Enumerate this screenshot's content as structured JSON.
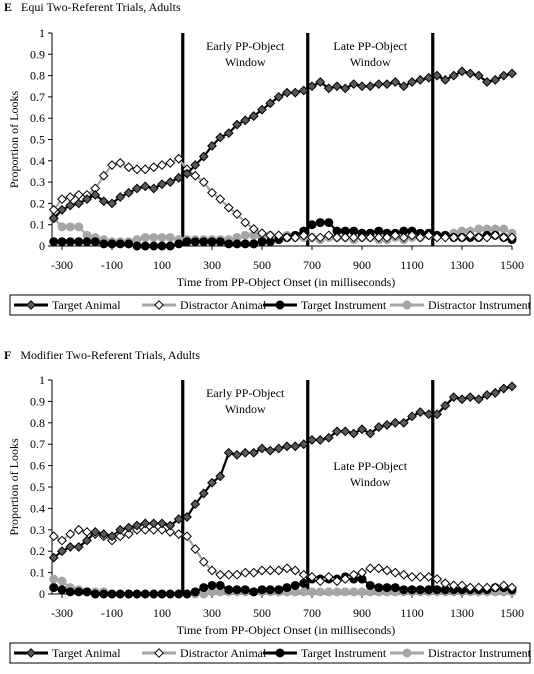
{
  "chart_data": [
    {
      "type": "line",
      "panel_letter": "E",
      "title": "Equi Two-Referent Trials, Adults",
      "xlabel": "Time from PP-Object Onset (in milliseconds)",
      "ylabel": "Proportion of Looks",
      "xlim": [
        -340,
        1500
      ],
      "ylim": [
        0,
        1
      ],
      "xticks": [
        -300,
        -100,
        100,
        300,
        500,
        700,
        900,
        1100,
        1300,
        1500
      ],
      "yticks": [
        0,
        0.1,
        0.2,
        0.3,
        0.4,
        0.5,
        0.6,
        0.7,
        0.8,
        0.9,
        1
      ],
      "window_lines": [
        183,
        683,
        1183
      ],
      "window_labels": [
        {
          "line1": "Early PP-Object",
          "line2": "Window",
          "x": 433,
          "y": 0.92
        },
        {
          "line1": "Late PP-Object",
          "line2": "Window",
          "x": 933,
          "y": 0.92
        }
      ],
      "grid": false,
      "legend": "bottom",
      "x": [
        -333,
        -300,
        -267,
        -233,
        -200,
        -167,
        -133,
        -100,
        -67,
        -33,
        0,
        33,
        67,
        100,
        133,
        167,
        200,
        233,
        267,
        300,
        333,
        367,
        400,
        433,
        467,
        500,
        533,
        567,
        600,
        633,
        667,
        700,
        733,
        767,
        800,
        833,
        867,
        900,
        933,
        967,
        1000,
        1033,
        1067,
        1100,
        1133,
        1167,
        1200,
        1233,
        1267,
        1300,
        1333,
        1367,
        1400,
        1433,
        1467,
        1500
      ],
      "series": [
        {
          "name": "Target Animal",
          "style": "target-animal",
          "values": [
            0.13,
            0.17,
            0.19,
            0.2,
            0.22,
            0.24,
            0.21,
            0.2,
            0.23,
            0.25,
            0.27,
            0.28,
            0.27,
            0.29,
            0.3,
            0.32,
            0.34,
            0.38,
            0.42,
            0.47,
            0.51,
            0.53,
            0.57,
            0.59,
            0.61,
            0.64,
            0.67,
            0.7,
            0.72,
            0.72,
            0.73,
            0.75,
            0.77,
            0.74,
            0.75,
            0.74,
            0.76,
            0.75,
            0.75,
            0.76,
            0.76,
            0.77,
            0.75,
            0.77,
            0.78,
            0.79,
            0.8,
            0.78,
            0.8,
            0.82,
            0.81,
            0.8,
            0.77,
            0.78,
            0.8,
            0.81
          ]
        },
        {
          "name": "Distractor Animal",
          "style": "distractor-animal",
          "values": [
            0.17,
            0.22,
            0.23,
            0.24,
            0.24,
            0.27,
            0.33,
            0.38,
            0.39,
            0.37,
            0.36,
            0.36,
            0.37,
            0.38,
            0.39,
            0.41,
            0.36,
            0.33,
            0.3,
            0.25,
            0.22,
            0.18,
            0.15,
            0.11,
            0.08,
            0.06,
            0.05,
            0.05,
            0.04,
            0.04,
            0.05,
            0.04,
            0.04,
            0.05,
            0.04,
            0.04,
            0.04,
            0.04,
            0.04,
            0.04,
            0.04,
            0.05,
            0.04,
            0.05,
            0.04,
            0.05,
            0.04,
            0.04,
            0.04,
            0.04,
            0.05,
            0.04,
            0.04,
            0.05,
            0.04,
            0.04
          ]
        },
        {
          "name": "Target Instrument",
          "style": "target-instrument",
          "values": [
            0.02,
            0.02,
            0.02,
            0.02,
            0.02,
            0.02,
            0.01,
            0.01,
            0.01,
            0.01,
            0.0,
            0.0,
            0.0,
            0.0,
            0.0,
            0.01,
            0.02,
            0.02,
            0.02,
            0.02,
            0.02,
            0.01,
            0.01,
            0.01,
            0.01,
            0.02,
            0.02,
            0.03,
            0.04,
            0.05,
            0.07,
            0.1,
            0.11,
            0.11,
            0.07,
            0.07,
            0.07,
            0.06,
            0.06,
            0.07,
            0.06,
            0.06,
            0.07,
            0.07,
            0.06,
            0.06,
            0.05,
            0.05,
            0.04,
            0.04,
            0.04,
            0.04,
            0.05,
            0.05,
            0.04,
            0.03
          ]
        },
        {
          "name": "Distractor Instrument",
          "style": "distractor-instrument",
          "values": [
            0.13,
            0.09,
            0.09,
            0.09,
            0.05,
            0.04,
            0.03,
            0.02,
            0.02,
            0.02,
            0.03,
            0.04,
            0.04,
            0.04,
            0.04,
            0.03,
            0.03,
            0.03,
            0.03,
            0.03,
            0.03,
            0.03,
            0.04,
            0.05,
            0.05,
            0.04,
            0.05,
            0.04,
            0.05,
            0.04,
            0.04,
            0.04,
            0.03,
            0.04,
            0.04,
            0.04,
            0.03,
            0.04,
            0.04,
            0.03,
            0.03,
            0.04,
            0.03,
            0.04,
            0.04,
            0.05,
            0.05,
            0.05,
            0.06,
            0.07,
            0.07,
            0.08,
            0.08,
            0.08,
            0.08,
            0.06
          ]
        }
      ]
    },
    {
      "type": "line",
      "panel_letter": "F",
      "title": "Modifier Two-Referent Trials, Adults",
      "xlabel": "Time from PP-Object Onset (in milliseconds)",
      "ylabel": "Proportion of Looks",
      "xlim": [
        -340,
        1500
      ],
      "ylim": [
        0,
        1
      ],
      "xticks": [
        -300,
        -100,
        100,
        300,
        500,
        700,
        900,
        1100,
        1300,
        1500
      ],
      "yticks": [
        0,
        0.1,
        0.2,
        0.3,
        0.4,
        0.5,
        0.6,
        0.7,
        0.8,
        0.9,
        1
      ],
      "window_lines": [
        183,
        683,
        1183
      ],
      "window_labels": [
        {
          "line1": "Early PP-Object",
          "line2": "Window",
          "x": 433,
          "y": 0.92
        },
        {
          "line1": "Late PP-Object",
          "line2": "Window",
          "x": 933,
          "y": 0.58
        }
      ],
      "grid": false,
      "legend": "bottom",
      "x": [
        -333,
        -300,
        -267,
        -233,
        -200,
        -167,
        -133,
        -100,
        -67,
        -33,
        0,
        33,
        67,
        100,
        133,
        167,
        200,
        233,
        267,
        300,
        333,
        367,
        400,
        433,
        467,
        500,
        533,
        567,
        600,
        633,
        667,
        700,
        733,
        767,
        800,
        833,
        867,
        900,
        933,
        967,
        1000,
        1033,
        1067,
        1100,
        1133,
        1167,
        1200,
        1233,
        1267,
        1300,
        1333,
        1367,
        1400,
        1433,
        1467,
        1500
      ],
      "series": [
        {
          "name": "Target Animal",
          "style": "target-animal",
          "values": [
            0.17,
            0.2,
            0.22,
            0.22,
            0.25,
            0.29,
            0.28,
            0.27,
            0.3,
            0.31,
            0.32,
            0.33,
            0.33,
            0.33,
            0.32,
            0.35,
            0.36,
            0.42,
            0.47,
            0.52,
            0.55,
            0.66,
            0.65,
            0.66,
            0.66,
            0.68,
            0.67,
            0.68,
            0.69,
            0.69,
            0.7,
            0.72,
            0.72,
            0.73,
            0.76,
            0.76,
            0.75,
            0.77,
            0.75,
            0.78,
            0.79,
            0.8,
            0.8,
            0.83,
            0.85,
            0.84,
            0.84,
            0.88,
            0.92,
            0.91,
            0.92,
            0.91,
            0.93,
            0.94,
            0.96,
            0.97
          ]
        },
        {
          "name": "Distractor Animal",
          "style": "distractor-animal",
          "values": [
            0.27,
            0.25,
            0.28,
            0.3,
            0.29,
            0.28,
            0.27,
            0.25,
            0.27,
            0.28,
            0.3,
            0.3,
            0.3,
            0.3,
            0.29,
            0.28,
            0.27,
            0.21,
            0.15,
            0.11,
            0.09,
            0.09,
            0.09,
            0.1,
            0.1,
            0.11,
            0.11,
            0.11,
            0.12,
            0.11,
            0.09,
            0.08,
            0.06,
            0.08,
            0.06,
            0.07,
            0.09,
            0.1,
            0.12,
            0.12,
            0.11,
            0.1,
            0.09,
            0.08,
            0.08,
            0.08,
            0.07,
            0.05,
            0.04,
            0.04,
            0.03,
            0.03,
            0.03,
            0.03,
            0.04,
            0.03
          ]
        },
        {
          "name": "Target Instrument",
          "style": "target-instrument",
          "values": [
            0.03,
            0.02,
            0.01,
            0.01,
            0.01,
            0.0,
            0.0,
            0.0,
            0.0,
            0.0,
            0.0,
            0.0,
            0.0,
            0.0,
            0.0,
            0.0,
            0.0,
            0.01,
            0.03,
            0.04,
            0.04,
            0.02,
            0.02,
            0.02,
            0.01,
            0.02,
            0.02,
            0.02,
            0.03,
            0.04,
            0.05,
            0.07,
            0.07,
            0.07,
            0.07,
            0.08,
            0.07,
            0.07,
            0.04,
            0.03,
            0.03,
            0.03,
            0.02,
            0.02,
            0.02,
            0.02,
            0.02,
            0.02,
            0.02,
            0.02,
            0.02,
            0.02,
            0.02,
            0.03,
            0.03,
            0.02
          ]
        },
        {
          "name": "Distractor Instrument",
          "style": "distractor-instrument",
          "values": [
            0.07,
            0.06,
            0.03,
            0.02,
            0.01,
            0.01,
            0.01,
            0.0,
            0.0,
            0.0,
            0.0,
            0.0,
            0.0,
            0.0,
            0.0,
            0.0,
            0.0,
            0.0,
            0.0,
            0.01,
            0.01,
            0.01,
            0.01,
            0.01,
            0.01,
            0.01,
            0.01,
            0.01,
            0.01,
            0.01,
            0.01,
            0.01,
            0.01,
            0.01,
            0.01,
            0.01,
            0.01,
            0.01,
            0.01,
            0.01,
            0.01,
            0.01,
            0.01,
            0.01,
            0.01,
            0.01,
            0.01,
            0.01,
            0.01,
            0.01,
            0.01,
            0.01,
            0.01,
            0.01,
            0.01,
            0.01
          ]
        }
      ]
    }
  ],
  "legend_styles": {
    "target-animal": {
      "line": "#000000",
      "marker": "diamond",
      "fill": "#595959",
      "stroke": "#000000"
    },
    "distractor-animal": {
      "line": "#a6a6a6",
      "marker": "diamond",
      "fill": "#ffffff",
      "stroke": "#000000"
    },
    "target-instrument": {
      "line": "#000000",
      "marker": "circle",
      "fill": "#000000",
      "stroke": "#000000"
    },
    "distractor-instrument": {
      "line": "#a6a6a6",
      "marker": "circle",
      "fill": "#a6a6a6",
      "stroke": "#a6a6a6"
    }
  }
}
